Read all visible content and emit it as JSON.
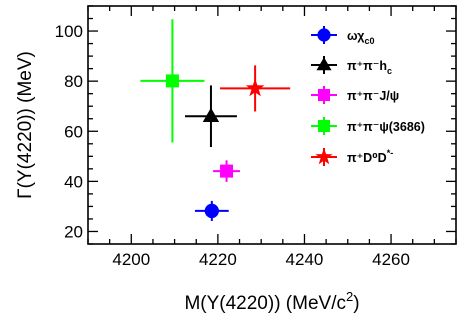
{
  "chart_data": {
    "type": "scatter",
    "xlabel": "M(Y(4220)) (MeV/c",
    "xlabel_sup": "2",
    "xlabel_close": ")",
    "ylabel": "Γ(Y(4220)) (MeV)",
    "xlim": [
      4190,
      4275
    ],
    "ylim": [
      15,
      110
    ],
    "xticks": [
      4200,
      4220,
      4240,
      4260
    ],
    "yticks": [
      20,
      40,
      60,
      80,
      100
    ],
    "grid": false,
    "legend_position": "top-right",
    "series": [
      {
        "name": "ωχ",
        "sub": "c0",
        "sup": "",
        "color": "#0000ff",
        "marker": "circle",
        "x": 4218.6,
        "xerr": 3.9,
        "y": 28.2,
        "yerr": 4.0
      },
      {
        "name": "π⁺π⁻h",
        "sub": "c",
        "sup": "",
        "color": "#000000",
        "marker": "triangle",
        "x": 4218.4,
        "xerr": 6.0,
        "y": 66.0,
        "yerr": 12.3
      },
      {
        "name": "π⁺π⁻J/ψ",
        "sub": "",
        "sup": "",
        "color": "#ff00ff",
        "marker": "square",
        "x": 4222.0,
        "xerr": 3.1,
        "y": 44.1,
        "yerr": 4.3
      },
      {
        "name": "π⁺π⁻ψ(3686)",
        "sub": "",
        "sup": "",
        "color": "#00ff00",
        "marker": "square",
        "x": 4209.5,
        "xerr": 7.4,
        "y": 80.1,
        "yerr": 24.6
      },
      {
        "name": "π⁺D⁰D",
        "sub": "",
        "sup": "*-",
        "color": "#ff0000",
        "marker": "star",
        "x": 4228.6,
        "xerr": 8.1,
        "y": 77.1,
        "yerr": 9.2
      }
    ]
  }
}
